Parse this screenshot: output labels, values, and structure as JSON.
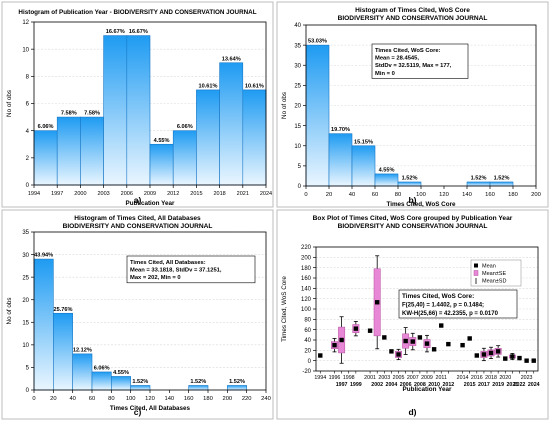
{
  "chart_data": [
    {
      "id": "a",
      "type": "bar",
      "panel_label": "a)",
      "title": "Histogram of Publication Year  - BIODIVERSITY AND CONSERVATION JOURNAL",
      "subtitle": "",
      "xlabel": "Publication Year",
      "ylabel": "No of obs",
      "ylim": [
        0,
        12
      ],
      "yticks": [
        0,
        2,
        4,
        6,
        8,
        10,
        12
      ],
      "xticks": [
        "1994",
        "1997",
        "2000",
        "2003",
        "2006",
        "2009",
        "2012",
        "2015",
        "2018",
        "2021",
        "2024"
      ],
      "bars": [
        {
          "from": 1994,
          "to": 1997,
          "value": 4,
          "label": "6.06%"
        },
        {
          "from": 1997,
          "to": 2000,
          "value": 5,
          "label": "7.58%"
        },
        {
          "from": 2000,
          "to": 2003,
          "value": 5,
          "label": "7.58%"
        },
        {
          "from": 2003,
          "to": 2006,
          "value": 11,
          "label": "16.67%"
        },
        {
          "from": 2006,
          "to": 2009,
          "value": 11,
          "label": "16.67%"
        },
        {
          "from": 2009,
          "to": 2012,
          "value": 3,
          "label": "4.55%"
        },
        {
          "from": 2012,
          "to": 2015,
          "value": 4,
          "label": "6.06%"
        },
        {
          "from": 2015,
          "to": 2018,
          "value": 7,
          "label": "10.61%"
        },
        {
          "from": 2018,
          "to": 2021,
          "value": 9,
          "label": "13.64%"
        },
        {
          "from": 2021,
          "to": 2024,
          "value": 7,
          "label": "10.61%"
        }
      ],
      "grid": true
    },
    {
      "id": "b",
      "type": "bar",
      "panel_label": "b)",
      "title": "Histogram of Times Cited, WoS Core",
      "subtitle": "BIODIVERSITY AND CONSERVATION JOURNAL",
      "xlabel": "Times Cited, WoS Core",
      "ylabel": "No of obs",
      "ylim": [
        0,
        40
      ],
      "yticks": [
        0,
        5,
        10,
        15,
        20,
        25,
        30,
        35,
        40
      ],
      "xticks": [
        "0",
        "20",
        "40",
        "60",
        "80",
        "100",
        "120",
        "140",
        "160",
        "180",
        "200"
      ],
      "bars": [
        {
          "from": 0,
          "to": 20,
          "value": 35,
          "label": "53.03%"
        },
        {
          "from": 20,
          "to": 40,
          "value": 13,
          "label": "19.70%"
        },
        {
          "from": 40,
          "to": 60,
          "value": 10,
          "label": "15.15%"
        },
        {
          "from": 60,
          "to": 80,
          "value": 3,
          "label": "4.55%"
        },
        {
          "from": 80,
          "to": 100,
          "value": 1,
          "label": "1.52%"
        },
        {
          "from": 100,
          "to": 120,
          "value": 0,
          "label": ""
        },
        {
          "from": 120,
          "to": 140,
          "value": 0,
          "label": ""
        },
        {
          "from": 140,
          "to": 160,
          "value": 1,
          "label": "1.52%"
        },
        {
          "from": 160,
          "to": 180,
          "value": 1,
          "label": "1.52%"
        }
      ],
      "stats_box": [
        "Times Cited, WoS Core:",
        "Mean = 28.4545,",
        "StdDv = 32.5119, Max = 177,",
        "Min = 0"
      ],
      "grid": true
    },
    {
      "id": "c",
      "type": "bar",
      "panel_label": "c)",
      "title": "Histogram of Times Cited, All Databases",
      "subtitle": "BIODIVERSITY AND CONSERVATION JOURNAL",
      "xlabel": "Times Cited, All Databases",
      "ylabel": "No of obs",
      "ylim": [
        0,
        35
      ],
      "yticks": [
        0,
        5,
        10,
        15,
        20,
        25,
        30,
        35
      ],
      "xticks": [
        "0",
        "20",
        "40",
        "60",
        "80",
        "100",
        "120",
        "140",
        "160",
        "180",
        "200",
        "220",
        "240"
      ],
      "bars": [
        {
          "from": 0,
          "to": 20,
          "value": 29,
          "label": "43.94%"
        },
        {
          "from": 20,
          "to": 40,
          "value": 17,
          "label": "25.76%"
        },
        {
          "from": 40,
          "to": 60,
          "value": 8,
          "label": "12.12%"
        },
        {
          "from": 60,
          "to": 80,
          "value": 4,
          "label": "6.06%"
        },
        {
          "from": 80,
          "to": 100,
          "value": 3,
          "label": "4.55%"
        },
        {
          "from": 100,
          "to": 120,
          "value": 1,
          "label": "1.52%"
        },
        {
          "from": 120,
          "to": 140,
          "value": 0,
          "label": ""
        },
        {
          "from": 140,
          "to": 160,
          "value": 0,
          "label": ""
        },
        {
          "from": 160,
          "to": 180,
          "value": 1,
          "label": "1.52%"
        },
        {
          "from": 180,
          "to": 200,
          "value": 0,
          "label": ""
        },
        {
          "from": 200,
          "to": 220,
          "value": 1,
          "label": "1.52%"
        }
      ],
      "stats_box": [
        "Times Cited, All Databases:",
        "Mean = 33.1818, StdDv = 37.1251,",
        "Max = 202, Min = 0"
      ],
      "grid": true
    },
    {
      "id": "d",
      "type": "box",
      "panel_label": "d)",
      "title": "Box Plot of Times Cited, WoS Core grouped by  Publication Year",
      "subtitle": "BIODIVERSITY AND CONSERVATION JOURNAL",
      "xlabel": "Publication Year",
      "ylabel": "Times Cited, WoS Core",
      "ylim": [
        -20,
        220
      ],
      "yticks": [
        -20,
        0,
        20,
        40,
        60,
        80,
        100,
        120,
        140,
        160,
        180,
        200,
        220
      ],
      "x_top_labels": [
        "1994",
        "1996",
        "1998",
        "2001",
        "2003",
        "2005",
        "2007",
        "2009",
        "2011",
        "2014",
        "2016",
        "2018",
        "2020",
        "2023"
      ],
      "x_bottom_labels": [
        "1997",
        "1999",
        "2002",
        "2004",
        "2006",
        "2008",
        "2010",
        "2012",
        "2015",
        "2017",
        "2019",
        "2021",
        "2022",
        "2024"
      ],
      "legend": [
        "Mean",
        "Mean±SE",
        "Mean±SD"
      ],
      "stats_box": [
        "Times Cited, WoS Core:",
        "F(25,40) = 1.4402, p = 0.1484;",
        "KW-H(25,66) = 42.2355, p = 0.0170"
      ],
      "boxes": [
        {
          "year": 1994,
          "mean": 10,
          "se": 0,
          "sd": 0
        },
        {
          "year": 1997,
          "mean": 40,
          "se": 25,
          "sd": 45
        },
        {
          "year": 1996,
          "mean": 30,
          "se": 7,
          "sd": 13
        },
        {
          "year": 1999,
          "mean": 62,
          "se": 8,
          "sd": 14
        },
        {
          "year": 2001,
          "mean": 58,
          "se": 0,
          "sd": 0
        },
        {
          "year": 2002,
          "mean": 113,
          "se": 65,
          "sd": 90
        },
        {
          "year": 2003,
          "mean": 45,
          "se": 0,
          "sd": 0
        },
        {
          "year": 2004,
          "mean": 18,
          "se": 0,
          "sd": 0
        },
        {
          "year": 2005,
          "mean": 12,
          "se": 6,
          "sd": 10
        },
        {
          "year": 2006,
          "mean": 38,
          "se": 14,
          "sd": 26
        },
        {
          "year": 2007,
          "mean": 37,
          "se": 8,
          "sd": 16
        },
        {
          "year": 2008,
          "mean": 45,
          "se": 0,
          "sd": 0
        },
        {
          "year": 2009,
          "mean": 33,
          "se": 8,
          "sd": 16
        },
        {
          "year": 2010,
          "mean": 22,
          "se": 0,
          "sd": 0
        },
        {
          "year": 2011,
          "mean": 68,
          "se": 0,
          "sd": 0
        },
        {
          "year": 2012,
          "mean": 32,
          "se": 0,
          "sd": 0
        },
        {
          "year": 2014,
          "mean": 30,
          "se": 0,
          "sd": 0
        },
        {
          "year": 2015,
          "mean": 43,
          "se": 0,
          "sd": 0
        },
        {
          "year": 2016,
          "mean": 10,
          "se": 0,
          "sd": 0
        },
        {
          "year": 2017,
          "mean": 12,
          "se": 6,
          "sd": 12
        },
        {
          "year": 2018,
          "mean": 15,
          "se": 6,
          "sd": 11
        },
        {
          "year": 2019,
          "mean": 18,
          "se": 6,
          "sd": 11
        },
        {
          "year": 2020,
          "mean": 4,
          "se": 0,
          "sd": 0
        },
        {
          "year": 2021,
          "mean": 8,
          "se": 3,
          "sd": 6
        },
        {
          "year": 2022,
          "mean": 5,
          "se": 0,
          "sd": 0
        },
        {
          "year": 2023,
          "mean": 0,
          "se": 0,
          "sd": 0
        },
        {
          "year": 2024,
          "mean": 0,
          "se": 0,
          "sd": 0
        }
      ],
      "grid": true
    }
  ],
  "colors": {
    "bar_top": "#1e9bf2",
    "bar_bottom": "#eaf6ff",
    "box_fill": "#e887d6",
    "box_edge": "#b5509f",
    "mean_marker": "#000000",
    "axis": "#000000",
    "grid": "#d9d9d9"
  }
}
